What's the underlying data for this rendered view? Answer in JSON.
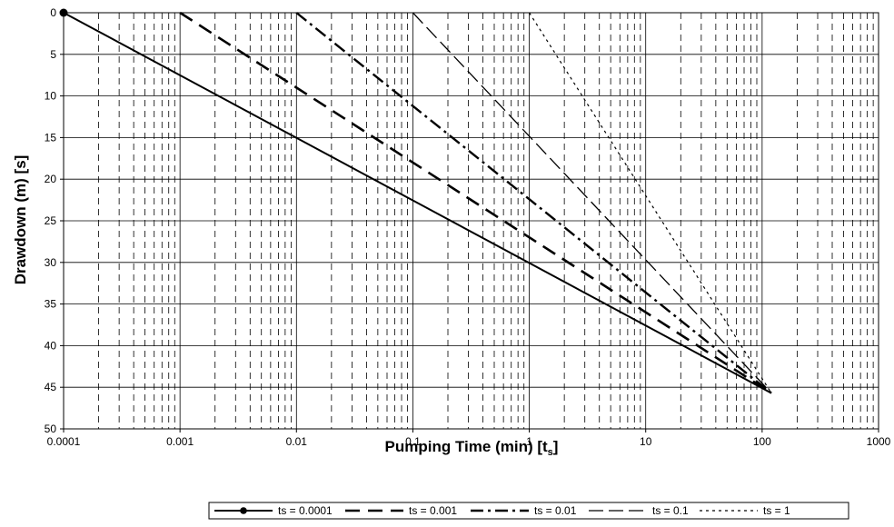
{
  "chart_data": {
    "type": "line",
    "x_scale": "log",
    "xlim": [
      0.0001,
      1000
    ],
    "ylim": [
      0,
      50
    ],
    "y_inverted": true,
    "grid": "on",
    "x_ticks": [
      "0.0001",
      "0.001",
      "0.01",
      "0.1",
      "1",
      "10",
      "100",
      "1000"
    ],
    "y_ticks": [
      "0",
      "5",
      "10",
      "15",
      "20",
      "25",
      "30",
      "35",
      "40",
      "45",
      "50"
    ],
    "xlabel_main": "Pumping Time (min)  [t",
    "xlabel_sub": "s",
    "xlabel_end": "]",
    "ylabel": "Drawdown (m)  [s]",
    "legend_position": "bottom",
    "series": [
      {
        "name": "ts = 0.0001",
        "style": "solid-marker",
        "x": [
          0.0001,
          120
        ],
        "y": [
          0,
          45.7
        ]
      },
      {
        "name": "ts = 0.001",
        "style": "long-dash",
        "x": [
          0.001,
          120
        ],
        "y": [
          0,
          45.7
        ]
      },
      {
        "name": "ts = 0.01",
        "style": "dash-dot",
        "x": [
          0.01,
          120
        ],
        "y": [
          0,
          45.7
        ]
      },
      {
        "name": "ts = 0.1",
        "style": "long-dash-thin",
        "x": [
          0.1,
          120
        ],
        "y": [
          0,
          45.7
        ]
      },
      {
        "name": "ts = 1",
        "style": "dotted",
        "x": [
          1,
          120
        ],
        "y": [
          0,
          45.7
        ]
      }
    ]
  }
}
